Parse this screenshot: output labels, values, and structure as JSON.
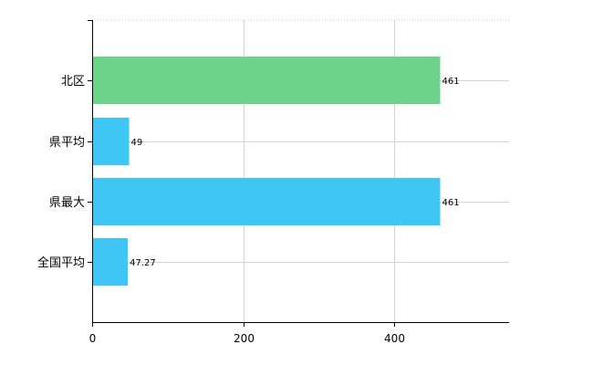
{
  "chart_data": {
    "type": "bar",
    "orientation": "horizontal",
    "categories": [
      "北区",
      "県平均",
      "県最大",
      "全国平均"
    ],
    "values": [
      461,
      49,
      461,
      47.27
    ],
    "data_labels": [
      "461",
      "49",
      "461",
      "47.27"
    ],
    "bar_colors": [
      "#6dd38a",
      "#3ec6f5",
      "#3ec6f5",
      "#3ec6f5"
    ],
    "xlim": [
      0,
      550
    ],
    "x_ticks": [
      0,
      200,
      400
    ],
    "x_tick_labels": [
      "0",
      "200",
      "400"
    ],
    "title": "",
    "xlabel": "",
    "ylabel": "",
    "grid": true,
    "legend": "none"
  }
}
